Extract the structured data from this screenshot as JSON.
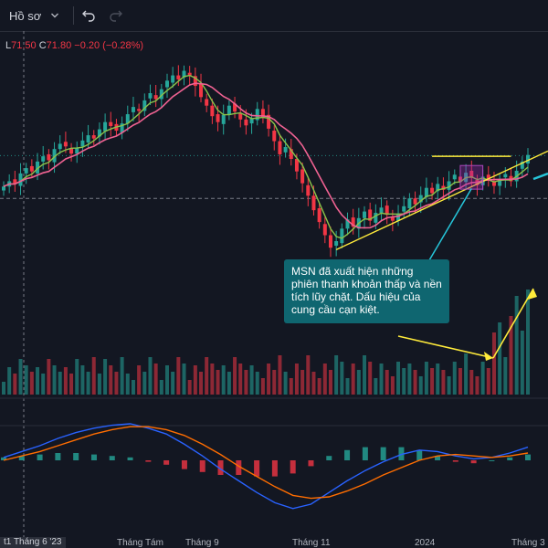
{
  "toolbar": {
    "profile_label": "Hồ sơ",
    "undo_icon": "undo-icon",
    "redo_icon": "redo-icon",
    "chevron_icon": "chevron-down-icon"
  },
  "ohlc": {
    "low_key": "L",
    "low_value": "71.50",
    "close_key": "C",
    "close_value": "71.80",
    "change": "−0.20 (−0.28%)"
  },
  "annotation": {
    "text": "MSN đã xuất hiện những phiên thanh khoản thấp và nền tích lũy chặt. Dấu hiệu của cung cầu cạn kiệt."
  },
  "x_axis": {
    "active_label": "t1 Tháng 6 '23",
    "labels": [
      "Tháng Tám",
      "Tháng 9",
      "Tháng 11",
      "2024",
      "Tháng 3"
    ]
  },
  "colors": {
    "background": "#131722",
    "up": "#26a69a",
    "down": "#f23645",
    "ma_fast": "#8bc34a",
    "ma_slow": "#f06292",
    "macd": "#2962ff",
    "signal": "#ff6d00",
    "trendline": "#ffeb3b",
    "annotation_bg": "#0f6670",
    "arrow": "#26c6da"
  },
  "chart_data": {
    "type": "candlestick",
    "title": "",
    "price_panel": {
      "close_series": [
        70.8,
        71.6,
        71.2,
        72.8,
        73.6,
        73.1,
        74.6,
        75.4,
        74.8,
        76.5,
        77.3,
        76.9,
        75.8,
        76.6,
        77.8,
        78.6,
        78.1,
        79.5,
        80.6,
        80.0,
        79.3,
        80.4,
        81.8,
        82.9,
        82.3,
        83.9,
        85.0,
        84.1,
        85.6,
        86.9,
        87.7,
        87.1,
        88.4,
        87.6,
        86.1,
        84.4,
        83.1,
        81.5,
        80.6,
        81.7,
        83.1,
        82.2,
        81.0,
        80.1,
        81.2,
        82.6,
        81.4,
        79.6,
        77.7,
        75.7,
        76.8,
        75.0,
        73.1,
        71.3,
        69.4,
        67.2,
        65.4,
        63.4,
        61.5,
        62.5,
        64.4,
        65.8,
        64.7,
        66.0,
        67.0,
        65.6,
        66.8,
        67.6,
        66.5,
        65.6,
        66.7,
        67.8,
        69.0,
        68.1,
        69.5,
        70.6,
        69.8,
        71.2,
        70.3,
        71.6,
        72.6,
        71.5,
        72.9,
        72.1,
        71.0,
        72.3,
        71.8,
        70.9,
        71.9,
        72.7,
        71.6,
        73.2,
        74.6,
        75.6
      ],
      "reference_lines": {
        "horizontal_dotted_high": 75.5,
        "horizontal_dashed_low": 69.0
      },
      "annotation_box": "accumulation range"
    },
    "volume_panel": {
      "note": "low-liquidity sessions before spike",
      "spike_sessions": 5
    },
    "macd_panel": {
      "series": [
        {
          "role": "macd",
          "values": [
            0.2,
            0.6,
            1.0,
            1.5,
            1.9,
            2.2,
            2.4,
            2.5,
            2.2,
            1.8,
            1.1,
            0.3,
            -0.6,
            -1.4,
            -2.2,
            -2.9,
            -3.3,
            -3.0,
            -2.2,
            -1.4,
            -0.7,
            -0.1,
            0.4,
            0.7,
            0.6,
            0.3,
            0.1,
            0.2,
            0.5,
            0.9
          ]
        },
        {
          "role": "signal",
          "values": [
            0.0,
            0.3,
            0.6,
            1.0,
            1.4,
            1.8,
            2.1,
            2.3,
            2.3,
            2.1,
            1.7,
            1.1,
            0.4,
            -0.4,
            -1.1,
            -1.8,
            -2.4,
            -2.6,
            -2.5,
            -2.1,
            -1.6,
            -1.0,
            -0.5,
            0.0,
            0.3,
            0.4,
            0.3,
            0.2,
            0.3,
            0.5
          ]
        }
      ]
    }
  }
}
